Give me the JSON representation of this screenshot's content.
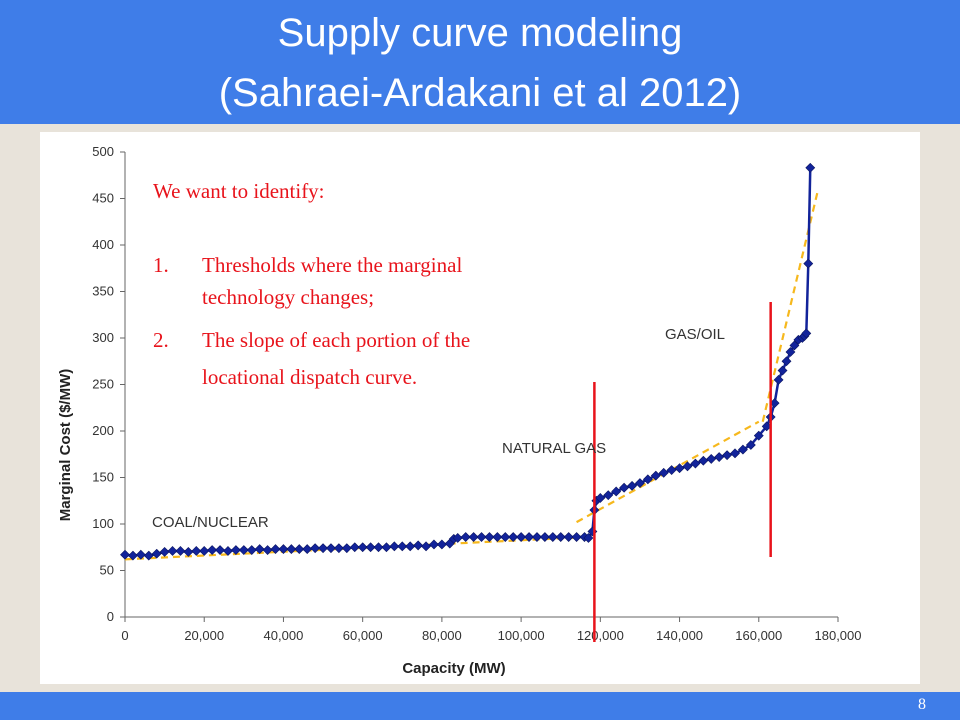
{
  "slide": {
    "title_line1": "Supply curve modeling",
    "title_line2": "(Sahraei-Ardakani et al 2012)",
    "page_number": "8"
  },
  "colors": {
    "header_bg": "#3f7de8",
    "data_series": "#12239a",
    "trend_lines": "#f6b81d",
    "threshold_lines": "#e8131b",
    "note_text": "#e8131b"
  },
  "chart_data": {
    "type": "scatter",
    "title": "",
    "xlabel": "Capacity (MW)",
    "ylabel": "Marginal Cost ($/MW)",
    "xlim": [
      0,
      180000
    ],
    "ylim": [
      0,
      500
    ],
    "x_ticks": [
      0,
      20000,
      40000,
      60000,
      80000,
      100000,
      120000,
      140000,
      160000,
      180000
    ],
    "x_tick_labels": [
      "0",
      "20,000",
      "40,000",
      "60,000",
      "80,000",
      "100,000",
      "120,000",
      "140,000",
      "160,000",
      "180,000"
    ],
    "y_ticks": [
      0,
      50,
      100,
      150,
      200,
      250,
      300,
      350,
      400,
      450,
      500
    ],
    "y_tick_labels": [
      "0",
      "50",
      "100",
      "150",
      "200",
      "250",
      "300",
      "350",
      "400",
      "450",
      "500"
    ],
    "grid": false,
    "legend": "none",
    "series": [
      {
        "marker": "diamond",
        "x": [
          0,
          2000,
          4000,
          6000,
          8000,
          10000,
          12000,
          14000,
          16000,
          18000,
          20000,
          22000,
          24000,
          26000,
          28000,
          30000,
          32000,
          34000,
          36000,
          38000,
          40000,
          42000,
          44000,
          46000,
          48000,
          50000,
          52000,
          54000,
          56000,
          58000,
          60000,
          62000,
          64000,
          66000,
          68000,
          70000,
          72000,
          74000,
          76000,
          78000,
          80000,
          82000,
          83000,
          84000,
          86000,
          88000,
          90000,
          92000,
          94000,
          96000,
          98000,
          100000,
          102000,
          104000,
          106000,
          108000,
          110000,
          112000,
          114000,
          116000,
          117000,
          118000,
          118500,
          119000,
          120000,
          122000,
          124000,
          126000,
          128000,
          130000,
          132000,
          134000,
          136000,
          138000,
          140000,
          142000,
          144000,
          146000,
          148000,
          150000,
          152000,
          154000,
          156000,
          158000,
          160000,
          162000,
          163000,
          164000,
          165000,
          166000,
          167000,
          168000,
          169000,
          170000,
          171000,
          171500,
          172000,
          172500,
          173000
        ],
        "y": [
          67,
          66,
          67,
          66,
          68,
          70,
          71,
          71,
          70,
          71,
          71,
          72,
          72,
          71,
          72,
          72,
          72,
          73,
          72,
          73,
          73,
          73,
          73,
          73,
          74,
          74,
          74,
          74,
          74,
          75,
          75,
          75,
          75,
          75,
          76,
          76,
          76,
          77,
          76,
          78,
          78,
          79,
          84,
          85,
          86,
          86,
          86,
          86,
          86,
          86,
          86,
          86,
          86,
          86,
          86,
          86,
          86,
          86,
          86,
          86,
          85,
          92,
          115,
          125,
          128,
          131,
          135,
          139,
          141,
          144,
          148,
          152,
          155,
          158,
          160,
          162,
          165,
          168,
          170,
          172,
          174,
          176,
          180,
          185,
          195,
          205,
          215,
          230,
          255,
          265,
          275,
          285,
          292,
          298,
          300,
          302,
          305,
          380,
          483
        ]
      }
    ],
    "trend_lines": [
      {
        "x": [
          0,
          117000
        ],
        "y": [
          62,
          86
        ]
      },
      {
        "x": [
          114000,
          160000
        ],
        "y": [
          102,
          210
        ]
      },
      {
        "x": [
          161000,
          175000
        ],
        "y": [
          210,
          460
        ]
      }
    ],
    "threshold_lines_x": [
      118500,
      163000
    ],
    "annotations": {
      "coal_nuclear": "COAL/NUCLEAR",
      "natural_gas": "NATURAL GAS",
      "gas_oil": "GAS/OIL"
    },
    "note": {
      "heading": "We want to identify:",
      "item1_number": "1.",
      "item1_line1": "Thresholds where the marginal",
      "item1_line2": "technology changes;",
      "item2_number": "2.",
      "item2_line1": "The slope of each portion of the",
      "item2_line2": "locational dispatch curve."
    }
  }
}
